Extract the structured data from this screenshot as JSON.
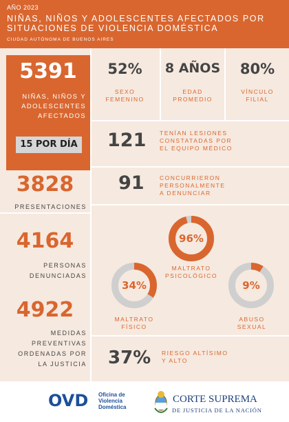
{
  "header": {
    "year": "AÑO 2023",
    "title_line1": "NIÑAS, NIÑOS Y ADOLESCENTES AFECTADOS POR",
    "title_line2": "SITUACIONES DE VIOLENCIA DOMÉSTICA",
    "city": "CIUDAD AUTÓNOMA DE BUENOS AIRES"
  },
  "colors": {
    "accent": "#d9662f",
    "background": "#f6e9df",
    "text_dark": "#444444",
    "ring_gray": "#cfcfcf",
    "footer_blue": "#1d4f9a"
  },
  "main": {
    "affected_count": "5391",
    "affected_label_lines": [
      "NIÑAS, NIÑOS Y",
      "ADOLESCENTES",
      "AFECTADOS"
    ],
    "per_day": "15 POR DÍA"
  },
  "top_stats": [
    {
      "value": "52%",
      "label_lines": [
        "SEXO",
        "FEMENINO"
      ]
    },
    {
      "value": "8 AÑOS",
      "label_lines": [
        "EDAD",
        "PROMEDIO"
      ]
    },
    {
      "value": "80%",
      "label_lines": [
        "VÍNCULO",
        "FILIAL"
      ]
    }
  ],
  "injuries": {
    "value": "121",
    "label_lines": [
      "TENÍAN LESIONES",
      "CONSTATADAS POR",
      "EL EQUIPO MÉDICO"
    ]
  },
  "reported": {
    "value": "91",
    "label_lines": [
      "CONCURRIERON",
      "PERSONALMENTE",
      "A DENUNCIAR"
    ]
  },
  "left_stats": [
    {
      "value": "3828",
      "label_lines": [
        "PRESENTACIONES"
      ]
    },
    {
      "value": "4164",
      "label_lines": [
        "PERSONAS",
        "DENUNCIADAS"
      ]
    },
    {
      "value": "4922",
      "label_lines": [
        "MEDIDAS",
        "PREVENTIVAS",
        "ORDENADAS POR",
        "LA JUSTICIA"
      ]
    }
  ],
  "donuts": [
    {
      "pct_label": "96%",
      "fraction": 0.96,
      "label_lines": [
        "MALTRATO",
        "PSICOLÓGICO"
      ]
    },
    {
      "pct_label": "34%",
      "fraction": 0.34,
      "label_lines": [
        "MALTRATO",
        "FÍSICO"
      ]
    },
    {
      "pct_label": "9%",
      "fraction": 0.09,
      "label_lines": [
        "ABUSO",
        "SEXUAL"
      ]
    }
  ],
  "risk": {
    "value": "37%",
    "label_lines": [
      "RIESGO ALTÍSIMO",
      "Y ALTO"
    ]
  },
  "footer": {
    "ovd_logo": "OVD",
    "ovd_sub_lines": [
      "Oficina de",
      "Violencia",
      "Doméstica"
    ],
    "cs_title": "CORTE SUPREMA",
    "cs_sub": "DE JUSTICIA DE LA NACIÓN"
  }
}
